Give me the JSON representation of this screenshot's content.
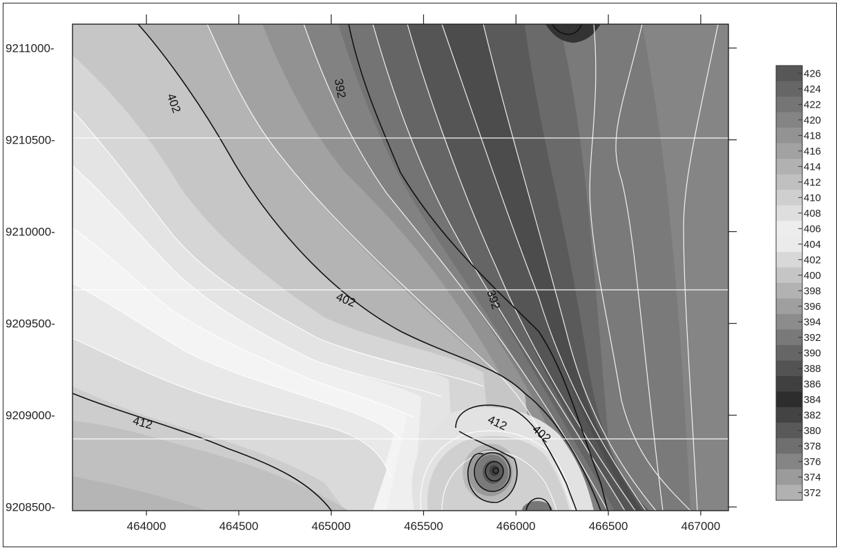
{
  "chart_data": {
    "type": "contour",
    "title": "",
    "xlabel": "",
    "ylabel": "",
    "xlim": [
      463600,
      467150
    ],
    "ylim": [
      9208480,
      9211130
    ],
    "x_ticks": [
      464000,
      464500,
      465000,
      465500,
      466000,
      466500,
      467000
    ],
    "x_tick_labels": [
      "464000",
      "464500",
      "465000",
      "465500",
      "466000",
      "466500",
      "467000"
    ],
    "y_ticks": [
      9208500,
      9209000,
      9209500,
      9210000,
      9210500,
      9211000
    ],
    "y_tick_labels": [
      "9208500-",
      "9209000-",
      "9209500-",
      "9210000-",
      "9210500-",
      "9211000-"
    ],
    "legend_position": "right",
    "colorbar_levels": [
      372,
      374,
      376,
      378,
      380,
      382,
      384,
      386,
      388,
      390,
      392,
      394,
      396,
      398,
      400,
      402,
      404,
      406,
      408,
      410,
      412,
      414,
      416,
      418,
      420,
      422,
      424,
      426
    ],
    "colorbar_labels": [
      "426",
      "424",
      "422",
      "420",
      "418",
      "416",
      "414",
      "412",
      "410",
      "408",
      "406",
      "404",
      "402",
      "400",
      "398",
      "396",
      "394",
      "392",
      "390",
      "388",
      "386",
      "384",
      "382",
      "380",
      "378",
      "376",
      "374",
      "372"
    ],
    "labeled_contours": [
      {
        "value": 402,
        "text": "402",
        "x": 464150,
        "y": 9210700
      },
      {
        "value": 392,
        "text": "392",
        "x": 465050,
        "y": 9210780
      },
      {
        "value": 402,
        "text": "402",
        "x": 465080,
        "y": 9209630
      },
      {
        "value": 392,
        "text": "392",
        "x": 465880,
        "y": 9209630
      },
      {
        "value": 412,
        "text": "412",
        "x": 463980,
        "y": 9208960
      },
      {
        "value": 412,
        "text": "412",
        "x": 465900,
        "y": 9208960
      },
      {
        "value": 402,
        "text": "402",
        "x": 466140,
        "y": 9208900
      }
    ],
    "colors": {
      "low": "#3a3a3a",
      "mid": "#f4f4f4",
      "high": "#8a8a8a",
      "black_contour": "#111111",
      "white_contour": "#ffffff"
    }
  }
}
